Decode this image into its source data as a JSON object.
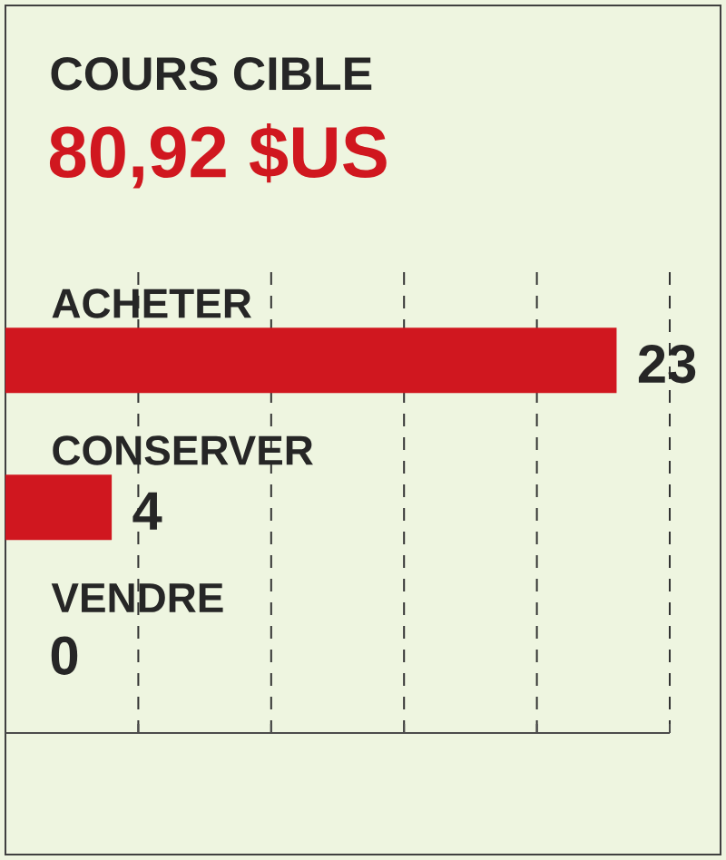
{
  "chart_data": {
    "type": "bar",
    "orientation": "horizontal",
    "title": "COURS CIBLE",
    "subtitle": "80,92 $US",
    "categories": [
      "ACHETER",
      "CONSERVER",
      "VENDRE"
    ],
    "values": [
      23,
      4,
      0
    ],
    "color": "#d0171f",
    "xlim": [
      0,
      25
    ],
    "xticks": [
      {
        "value": 5,
        "label": null
      },
      {
        "value": 10,
        "label": null
      },
      {
        "value": 15,
        "label": null
      },
      {
        "value": 20,
        "label": null
      },
      {
        "value": 25,
        "label": null
      }
    ],
    "grid": "x",
    "data_labels": true
  }
}
